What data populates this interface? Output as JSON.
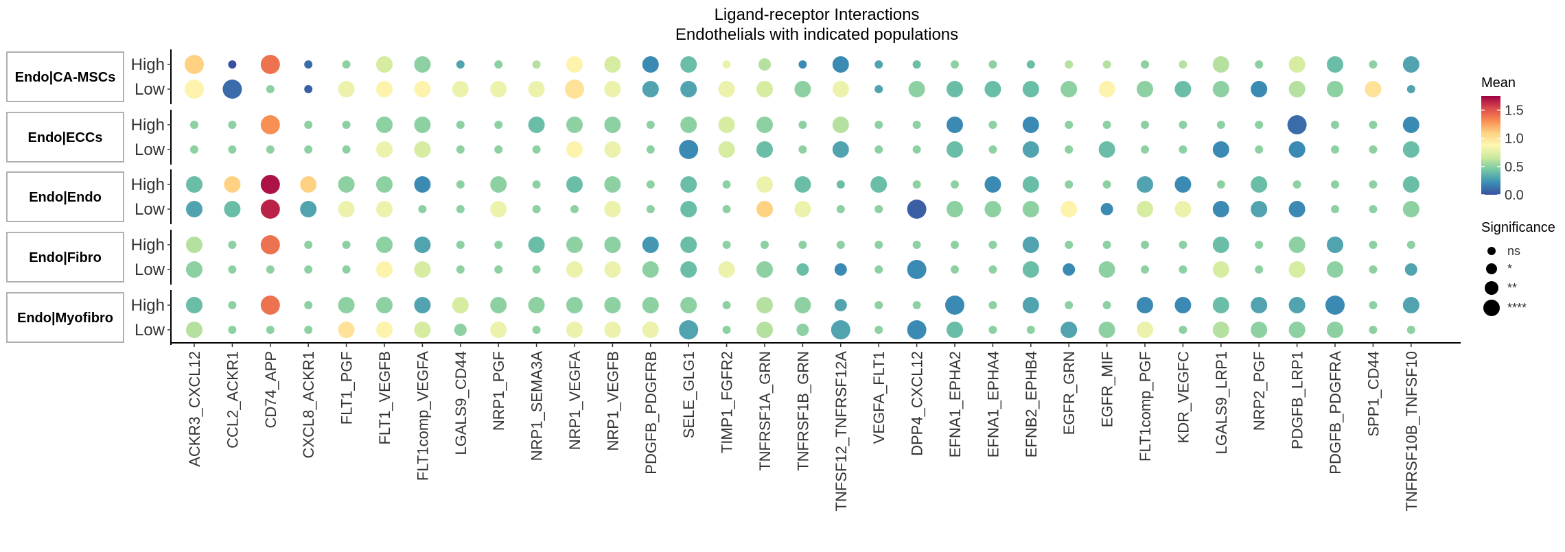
{
  "chart_data": {
    "type": "dotplot",
    "title": "Ligand-receptor Interactions",
    "subtitle": "Endothelials with indicated populations",
    "panels": [
      "Endo|CA-MSCs",
      "Endo|ECCs",
      "Endo|Endo",
      "Endo|Fibro",
      "Endo|Myofibro"
    ],
    "row_levels": [
      "High",
      "Low"
    ],
    "pairs": [
      "ACKR3_CXCL12",
      "CCL2_ACKR1",
      "CD74_APP",
      "CXCL8_ACKR1",
      "FLT1_PGF",
      "FLT1_VEGFB",
      "FLT1comp_VEGFA",
      "LGALS9_CD44",
      "NRP1_PGF",
      "NRP1_SEMA3A",
      "NRP1_VEGFA",
      "NRP1_VEGFB",
      "PDGFB_PDGFRB",
      "SELE_GLG1",
      "TIMP1_FGFR2",
      "TNFRSF1A_GRN",
      "TNFRSF1B_GRN",
      "TNFSF12_TNFRSF12A",
      "VEGFA_FLT1",
      "DPP4_CXCL12",
      "EFNA1_EPHA2",
      "EFNA1_EPHA4",
      "EFNB2_EPHB4",
      "EGFR_GRN",
      "EGFR_MIF",
      "FLT1comp_PGF",
      "KDR_VEGFC",
      "LGALS9_LRP1",
      "NRP2_PGF",
      "PDGFB_LRP1",
      "PDGFB_PDGFRA",
      "SPP1_CD44",
      "TNFRSF10B_TNFSF10"
    ],
    "mean_rows": [
      [
        1.1,
        0,
        1.4,
        0.1,
        0.5,
        0.7,
        0.5,
        0.3,
        0.5,
        0.6,
        0.9,
        0.7,
        0.2,
        0.4,
        0.8,
        0.6,
        0.2,
        0.2,
        0.3,
        0.4,
        0.5,
        0.5,
        0.4,
        0.6,
        0.6,
        0.5,
        0.6,
        0.6,
        0.5,
        0.7,
        0.4,
        0.5,
        0.3
      ],
      [
        0.9,
        0.1,
        0.5,
        0.05,
        0.8,
        0.9,
        0.9,
        0.8,
        0.8,
        0.8,
        1.0,
        0.8,
        0.3,
        0.3,
        0.8,
        0.7,
        0.5,
        0.8,
        0.3,
        0.5,
        0.4,
        0.4,
        0.4,
        0.5,
        0.9,
        0.5,
        0.4,
        0.5,
        0.2,
        0.6,
        0.5,
        1.0,
        0.3
      ],
      [
        0.5,
        0.5,
        1.3,
        0.5,
        0.5,
        0.5,
        0.5,
        0.5,
        0.5,
        0.4,
        0.5,
        0.5,
        0.5,
        0.5,
        0.7,
        0.5,
        0.5,
        0.6,
        0.5,
        0.5,
        0.2,
        0.5,
        0.2,
        0.5,
        0.5,
        0.5,
        0.5,
        0.5,
        0.5,
        0.1,
        0.5,
        0.5,
        0.2
      ],
      [
        0.5,
        0.5,
        0.5,
        0.5,
        0.5,
        0.8,
        0.7,
        0.5,
        0.5,
        0.5,
        0.9,
        0.8,
        0.5,
        0.2,
        0.7,
        0.4,
        0.5,
        0.3,
        0.5,
        0.5,
        0.4,
        0.5,
        0.3,
        0.5,
        0.4,
        0.5,
        0.5,
        0.2,
        0.5,
        0.2,
        0.5,
        0.5,
        0.4
      ],
      [
        0.4,
        1.1,
        1.7,
        1.1,
        0.5,
        0.5,
        0.2,
        0.5,
        0.5,
        0.5,
        0.4,
        0.5,
        0.5,
        0.4,
        0.5,
        0.8,
        0.4,
        0.4,
        0.4,
        0.5,
        0.5,
        0.2,
        0.4,
        0.5,
        0.5,
        0.3,
        0.2,
        0.5,
        0.4,
        0.5,
        0.5,
        0.5,
        0.4
      ],
      [
        0.3,
        0.4,
        1.65,
        0.3,
        0.8,
        0.8,
        0.5,
        0.5,
        0.8,
        0.5,
        0.5,
        0.8,
        0.5,
        0.4,
        0.5,
        1.1,
        0.8,
        0.5,
        0.5,
        0.05,
        0.5,
        0.5,
        0.5,
        0.9,
        0.2,
        0.7,
        0.8,
        0.2,
        0.3,
        0.2,
        0.5,
        0.5,
        0.5
      ],
      [
        0.6,
        0.5,
        1.4,
        0.5,
        0.5,
        0.5,
        0.3,
        0.5,
        0.5,
        0.4,
        0.5,
        0.5,
        0.25,
        0.4,
        0.5,
        0.5,
        0.5,
        0.5,
        0.5,
        0.5,
        0.5,
        0.5,
        0.3,
        0.5,
        0.5,
        0.5,
        0.5,
        0.4,
        0.5,
        0.5,
        0.3,
        0.5,
        0.5
      ],
      [
        0.5,
        0.5,
        0.5,
        0.5,
        0.5,
        0.9,
        0.7,
        0.5,
        0.5,
        0.5,
        0.8,
        0.8,
        0.5,
        0.4,
        0.8,
        0.5,
        0.4,
        0.2,
        0.5,
        0.2,
        0.5,
        0.5,
        0.4,
        0.2,
        0.5,
        0.5,
        0.5,
        0.7,
        0.5,
        0.7,
        0.5,
        0.5,
        0.3
      ],
      [
        0.4,
        0.5,
        1.4,
        0.5,
        0.5,
        0.5,
        0.3,
        0.7,
        0.5,
        0.5,
        0.5,
        0.5,
        0.5,
        0.5,
        0.5,
        0.6,
        0.5,
        0.3,
        0.5,
        0.5,
        0.2,
        0.5,
        0.3,
        0.5,
        0.5,
        0.2,
        0.2,
        0.4,
        0.3,
        0.3,
        0.2,
        0.5,
        0.3
      ],
      [
        0.6,
        0.5,
        0.5,
        0.5,
        1.0,
        0.9,
        0.7,
        0.5,
        0.8,
        0.5,
        0.8,
        0.8,
        0.8,
        0.3,
        0.5,
        0.6,
        0.5,
        0.3,
        0.5,
        0.2,
        0.4,
        0.5,
        0.5,
        0.3,
        0.5,
        0.8,
        0.5,
        0.6,
        0.5,
        0.5,
        0.5,
        0.5,
        0.5
      ]
    ],
    "size_rows": [
      [
        4,
        1,
        4,
        1,
        1,
        3,
        3,
        1,
        1,
        1,
        3,
        3,
        3,
        3,
        1,
        2,
        1,
        3,
        1,
        1,
        1,
        1,
        1,
        1,
        1,
        1,
        1,
        3,
        1,
        3,
        3,
        1,
        3
      ],
      [
        4,
        4,
        1,
        1,
        3,
        3,
        3,
        3,
        3,
        3,
        4,
        3,
        3,
        3,
        3,
        3,
        3,
        3,
        1,
        3,
        3,
        3,
        3,
        3,
        3,
        3,
        3,
        3,
        3,
        3,
        3,
        3,
        1
      ],
      [
        1,
        1,
        4,
        1,
        1,
        3,
        3,
        1,
        1,
        3,
        3,
        3,
        1,
        3,
        3,
        3,
        1,
        3,
        1,
        1,
        3,
        1,
        3,
        1,
        1,
        1,
        1,
        1,
        1,
        4,
        1,
        1,
        3
      ],
      [
        1,
        1,
        1,
        1,
        1,
        3,
        3,
        1,
        1,
        1,
        3,
        3,
        1,
        4,
        3,
        3,
        1,
        3,
        1,
        1,
        3,
        1,
        3,
        1,
        3,
        1,
        1,
        3,
        1,
        3,
        1,
        1,
        3
      ],
      [
        3,
        3,
        4,
        3,
        3,
        3,
        3,
        1,
        3,
        1,
        3,
        3,
        1,
        3,
        1,
        3,
        3,
        1,
        3,
        1,
        1,
        3,
        3,
        1,
        1,
        3,
        3,
        1,
        3,
        1,
        1,
        1,
        3
      ],
      [
        3,
        3,
        4,
        3,
        3,
        3,
        1,
        1,
        3,
        1,
        1,
        3,
        1,
        3,
        1,
        3,
        3,
        1,
        1,
        4,
        3,
        3,
        3,
        3,
        2,
        3,
        3,
        3,
        3,
        3,
        1,
        1,
        3
      ],
      [
        3,
        1,
        4,
        1,
        1,
        3,
        3,
        1,
        1,
        3,
        3,
        3,
        3,
        3,
        1,
        1,
        1,
        1,
        1,
        1,
        1,
        1,
        3,
        1,
        1,
        1,
        1,
        3,
        1,
        3,
        3,
        1,
        1
      ],
      [
        3,
        1,
        1,
        1,
        1,
        3,
        3,
        1,
        1,
        1,
        3,
        3,
        3,
        3,
        3,
        3,
        2,
        2,
        1,
        4,
        1,
        1,
        3,
        2,
        3,
        1,
        1,
        3,
        1,
        3,
        3,
        1,
        2
      ],
      [
        3,
        1,
        4,
        1,
        3,
        3,
        3,
        3,
        3,
        3,
        3,
        3,
        3,
        3,
        1,
        3,
        3,
        2,
        1,
        1,
        4,
        1,
        3,
        1,
        1,
        3,
        3,
        3,
        3,
        3,
        4,
        1,
        3
      ],
      [
        3,
        1,
        1,
        1,
        3,
        3,
        3,
        2,
        3,
        1,
        3,
        3,
        3,
        4,
        1,
        3,
        2,
        4,
        1,
        4,
        3,
        1,
        1,
        3,
        3,
        3,
        1,
        3,
        3,
        3,
        3,
        1,
        1
      ]
    ],
    "color_scale": {
      "title": "Mean",
      "ticks": [
        "0.0",
        "0.5",
        "1.0",
        "1.5"
      ],
      "range": [
        0.0,
        1.75
      ],
      "colors": [
        "#3b4fa0",
        "#3b8fb5",
        "#74c6a4",
        "#cbe99d",
        "#fdf7b2",
        "#fed384",
        "#f88c51",
        "#dc4a4c",
        "#9e0142"
      ]
    },
    "size_scale": {
      "title": "Significance",
      "labels": [
        "ns",
        "*",
        "**",
        "****"
      ]
    }
  }
}
